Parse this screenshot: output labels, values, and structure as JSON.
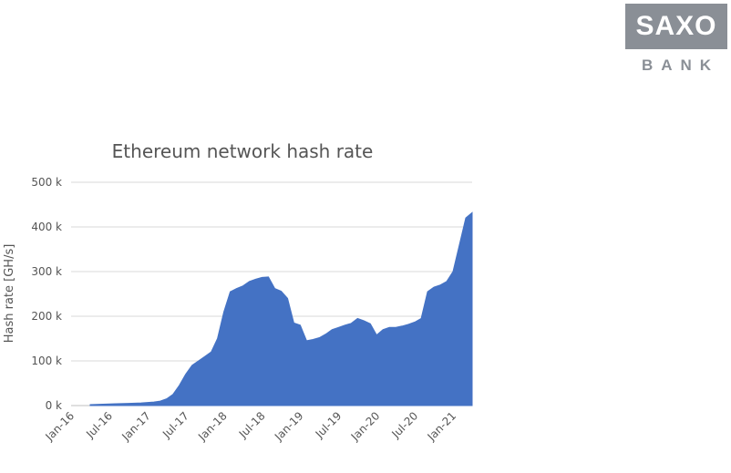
{
  "logo": {
    "main": "SAXO",
    "sub": "BANK"
  },
  "chart_data": {
    "type": "area",
    "title": "Ethereum network hash rate",
    "xlabel": "",
    "ylabel": "Hash rate [GH/s]",
    "ylim": [
      0,
      500
    ],
    "y_ticks": [
      "0 k",
      "100 k",
      "200 k",
      "300 k",
      "400 k",
      "500 k"
    ],
    "y_tick_values": [
      0,
      100,
      200,
      300,
      400,
      500
    ],
    "x_ticks": [
      "Jan-16",
      "Jul-16",
      "Jan-17",
      "Jul-17",
      "Jan-18",
      "Jul-18",
      "Jan-19",
      "Jul-19",
      "Jan-20",
      "Jul-20",
      "Jan-21"
    ],
    "x_tick_dates": [
      "2016-01",
      "2016-07",
      "2017-01",
      "2017-07",
      "2018-01",
      "2018-07",
      "2019-01",
      "2019-07",
      "2020-01",
      "2020-07",
      "2021-01"
    ],
    "xlim": [
      "2016-01",
      "2021-04"
    ],
    "grid": true,
    "color": "#4472c4",
    "series": [
      {
        "unit": "k GH/s",
        "x": [
          "2016-04",
          "2016-06",
          "2016-08",
          "2016-10",
          "2016-12",
          "2017-02",
          "2017-03",
          "2017-04",
          "2017-05",
          "2017-06",
          "2017-07",
          "2017-08",
          "2017-09",
          "2017-10",
          "2017-11",
          "2017-12",
          "2018-01",
          "2018-02",
          "2018-03",
          "2018-04",
          "2018-05",
          "2018-06",
          "2018-07",
          "2018-08",
          "2018-09",
          "2018-10",
          "2018-11",
          "2018-12",
          "2019-01",
          "2019-02",
          "2019-03",
          "2019-04",
          "2019-05",
          "2019-06",
          "2019-07",
          "2019-08",
          "2019-09",
          "2019-10",
          "2019-11",
          "2019-12",
          "2020-01",
          "2020-02",
          "2020-03",
          "2020-04",
          "2020-05",
          "2020-06",
          "2020-07",
          "2020-08",
          "2020-09",
          "2020-10",
          "2020-11",
          "2020-12",
          "2021-01",
          "2021-02",
          "2021-03",
          "2021-04"
        ],
        "values": [
          2,
          3,
          4,
          5,
          6,
          8,
          10,
          15,
          25,
          45,
          70,
          90,
          100,
          110,
          120,
          150,
          210,
          255,
          262,
          268,
          278,
          283,
          287,
          288,
          262,
          256,
          240,
          185,
          180,
          145,
          148,
          152,
          160,
          170,
          175,
          180,
          184,
          195,
          190,
          183,
          158,
          170,
          175,
          175,
          178,
          182,
          187,
          195,
          255,
          265,
          270,
          278,
          300,
          360,
          420,
          432
        ]
      }
    ]
  }
}
